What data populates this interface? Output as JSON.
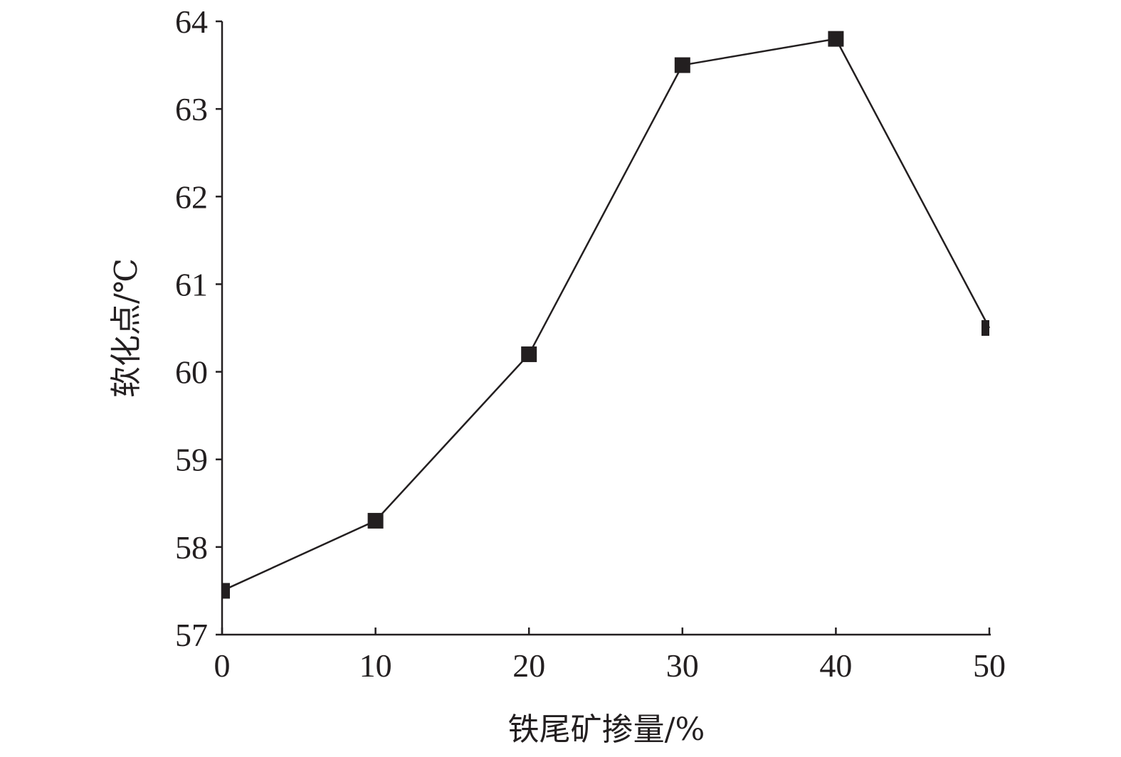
{
  "chart_data": {
    "type": "line",
    "title": "",
    "xlabel": "铁尾矿掺量/%",
    "ylabel": "软化点/℃",
    "xlim": [
      0,
      50
    ],
    "ylim": [
      57,
      64
    ],
    "xticks": [
      0,
      10,
      20,
      30,
      40,
      50
    ],
    "yticks": [
      57,
      58,
      59,
      60,
      61,
      62,
      63,
      64
    ],
    "grid": false,
    "legend": "none",
    "colors": {
      "line": "#231f20",
      "marker": "#231f20",
      "axis": "#231f20"
    },
    "marker": "square",
    "series": [
      {
        "x": [
          0,
          10,
          20,
          30,
          40,
          50
        ],
        "y": [
          57.5,
          58.3,
          60.2,
          63.5,
          63.8,
          60.5
        ]
      }
    ]
  }
}
